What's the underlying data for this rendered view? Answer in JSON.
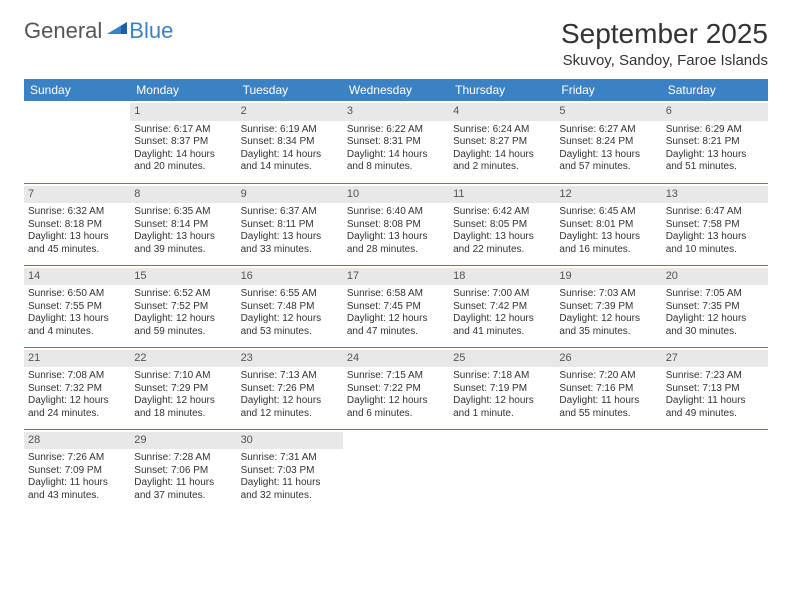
{
  "logo": {
    "part1": "General",
    "part2": "Blue"
  },
  "title": "September 2025",
  "location": "Skuvoy, Sandoy, Faroe Islands",
  "colors": {
    "header_bg": "#3b82c4",
    "header_text": "#ffffff",
    "daynum_bg": "#e8e8e8",
    "daynum_text": "#555555",
    "border": "#3b82c4",
    "body_text": "#333333",
    "logo_gray": "#555555",
    "logo_blue": "#3b82c4"
  },
  "day_headers": [
    "Sunday",
    "Monday",
    "Tuesday",
    "Wednesday",
    "Thursday",
    "Friday",
    "Saturday"
  ],
  "weeks": [
    [
      null,
      {
        "n": "1",
        "sunrise": "Sunrise: 6:17 AM",
        "sunset": "Sunset: 8:37 PM",
        "day1": "Daylight: 14 hours",
        "day2": "and 20 minutes."
      },
      {
        "n": "2",
        "sunrise": "Sunrise: 6:19 AM",
        "sunset": "Sunset: 8:34 PM",
        "day1": "Daylight: 14 hours",
        "day2": "and 14 minutes."
      },
      {
        "n": "3",
        "sunrise": "Sunrise: 6:22 AM",
        "sunset": "Sunset: 8:31 PM",
        "day1": "Daylight: 14 hours",
        "day2": "and 8 minutes."
      },
      {
        "n": "4",
        "sunrise": "Sunrise: 6:24 AM",
        "sunset": "Sunset: 8:27 PM",
        "day1": "Daylight: 14 hours",
        "day2": "and 2 minutes."
      },
      {
        "n": "5",
        "sunrise": "Sunrise: 6:27 AM",
        "sunset": "Sunset: 8:24 PM",
        "day1": "Daylight: 13 hours",
        "day2": "and 57 minutes."
      },
      {
        "n": "6",
        "sunrise": "Sunrise: 6:29 AM",
        "sunset": "Sunset: 8:21 PM",
        "day1": "Daylight: 13 hours",
        "day2": "and 51 minutes."
      }
    ],
    [
      {
        "n": "7",
        "sunrise": "Sunrise: 6:32 AM",
        "sunset": "Sunset: 8:18 PM",
        "day1": "Daylight: 13 hours",
        "day2": "and 45 minutes."
      },
      {
        "n": "8",
        "sunrise": "Sunrise: 6:35 AM",
        "sunset": "Sunset: 8:14 PM",
        "day1": "Daylight: 13 hours",
        "day2": "and 39 minutes."
      },
      {
        "n": "9",
        "sunrise": "Sunrise: 6:37 AM",
        "sunset": "Sunset: 8:11 PM",
        "day1": "Daylight: 13 hours",
        "day2": "and 33 minutes."
      },
      {
        "n": "10",
        "sunrise": "Sunrise: 6:40 AM",
        "sunset": "Sunset: 8:08 PM",
        "day1": "Daylight: 13 hours",
        "day2": "and 28 minutes."
      },
      {
        "n": "11",
        "sunrise": "Sunrise: 6:42 AM",
        "sunset": "Sunset: 8:05 PM",
        "day1": "Daylight: 13 hours",
        "day2": "and 22 minutes."
      },
      {
        "n": "12",
        "sunrise": "Sunrise: 6:45 AM",
        "sunset": "Sunset: 8:01 PM",
        "day1": "Daylight: 13 hours",
        "day2": "and 16 minutes."
      },
      {
        "n": "13",
        "sunrise": "Sunrise: 6:47 AM",
        "sunset": "Sunset: 7:58 PM",
        "day1": "Daylight: 13 hours",
        "day2": "and 10 minutes."
      }
    ],
    [
      {
        "n": "14",
        "sunrise": "Sunrise: 6:50 AM",
        "sunset": "Sunset: 7:55 PM",
        "day1": "Daylight: 13 hours",
        "day2": "and 4 minutes."
      },
      {
        "n": "15",
        "sunrise": "Sunrise: 6:52 AM",
        "sunset": "Sunset: 7:52 PM",
        "day1": "Daylight: 12 hours",
        "day2": "and 59 minutes."
      },
      {
        "n": "16",
        "sunrise": "Sunrise: 6:55 AM",
        "sunset": "Sunset: 7:48 PM",
        "day1": "Daylight: 12 hours",
        "day2": "and 53 minutes."
      },
      {
        "n": "17",
        "sunrise": "Sunrise: 6:58 AM",
        "sunset": "Sunset: 7:45 PM",
        "day1": "Daylight: 12 hours",
        "day2": "and 47 minutes."
      },
      {
        "n": "18",
        "sunrise": "Sunrise: 7:00 AM",
        "sunset": "Sunset: 7:42 PM",
        "day1": "Daylight: 12 hours",
        "day2": "and 41 minutes."
      },
      {
        "n": "19",
        "sunrise": "Sunrise: 7:03 AM",
        "sunset": "Sunset: 7:39 PM",
        "day1": "Daylight: 12 hours",
        "day2": "and 35 minutes."
      },
      {
        "n": "20",
        "sunrise": "Sunrise: 7:05 AM",
        "sunset": "Sunset: 7:35 PM",
        "day1": "Daylight: 12 hours",
        "day2": "and 30 minutes."
      }
    ],
    [
      {
        "n": "21",
        "sunrise": "Sunrise: 7:08 AM",
        "sunset": "Sunset: 7:32 PM",
        "day1": "Daylight: 12 hours",
        "day2": "and 24 minutes."
      },
      {
        "n": "22",
        "sunrise": "Sunrise: 7:10 AM",
        "sunset": "Sunset: 7:29 PM",
        "day1": "Daylight: 12 hours",
        "day2": "and 18 minutes."
      },
      {
        "n": "23",
        "sunrise": "Sunrise: 7:13 AM",
        "sunset": "Sunset: 7:26 PM",
        "day1": "Daylight: 12 hours",
        "day2": "and 12 minutes."
      },
      {
        "n": "24",
        "sunrise": "Sunrise: 7:15 AM",
        "sunset": "Sunset: 7:22 PM",
        "day1": "Daylight: 12 hours",
        "day2": "and 6 minutes."
      },
      {
        "n": "25",
        "sunrise": "Sunrise: 7:18 AM",
        "sunset": "Sunset: 7:19 PM",
        "day1": "Daylight: 12 hours",
        "day2": "and 1 minute."
      },
      {
        "n": "26",
        "sunrise": "Sunrise: 7:20 AM",
        "sunset": "Sunset: 7:16 PM",
        "day1": "Daylight: 11 hours",
        "day2": "and 55 minutes."
      },
      {
        "n": "27",
        "sunrise": "Sunrise: 7:23 AM",
        "sunset": "Sunset: 7:13 PM",
        "day1": "Daylight: 11 hours",
        "day2": "and 49 minutes."
      }
    ],
    [
      {
        "n": "28",
        "sunrise": "Sunrise: 7:26 AM",
        "sunset": "Sunset: 7:09 PM",
        "day1": "Daylight: 11 hours",
        "day2": "and 43 minutes."
      },
      {
        "n": "29",
        "sunrise": "Sunrise: 7:28 AM",
        "sunset": "Sunset: 7:06 PM",
        "day1": "Daylight: 11 hours",
        "day2": "and 37 minutes."
      },
      {
        "n": "30",
        "sunrise": "Sunrise: 7:31 AM",
        "sunset": "Sunset: 7:03 PM",
        "day1": "Daylight: 11 hours",
        "day2": "and 32 minutes."
      },
      null,
      null,
      null,
      null
    ]
  ]
}
